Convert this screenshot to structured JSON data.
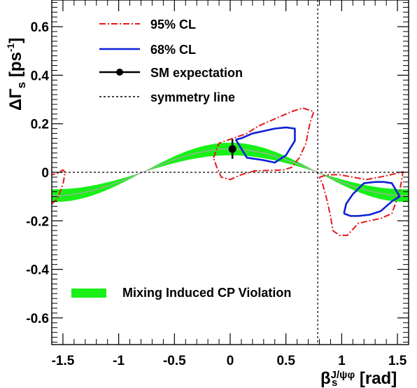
{
  "chart_data": {
    "type": "line",
    "xlim": [
      -1.6,
      1.6
    ],
    "ylim": [
      -0.71,
      0.71
    ],
    "x_ticks": [
      -1.5,
      -1,
      -0.5,
      0,
      0.5,
      1,
      1.5
    ],
    "x_tick_labels": [
      "-1.5",
      "-1",
      "-0.5",
      "0",
      "0.5",
      "1",
      "1.5"
    ],
    "y_ticks": [
      -0.6,
      -0.4,
      -0.2,
      0,
      0.2,
      0.4,
      0.6
    ],
    "y_tick_labels": [
      "-0.6",
      "-0.4",
      "-0.2",
      "0",
      "0.2",
      "0.4",
      "0.6"
    ],
    "xlabel": {
      "main": "β",
      "sub": "s",
      "sup": "J/ψφ",
      "unit": "[rad]"
    },
    "ylabel": {
      "main": "ΔΓ",
      "sub": "s",
      "unit_pre": "[ps",
      "unit_sup": "-1",
      "unit_post": "]"
    },
    "grid": false,
    "legend_placement": "top-left",
    "colors": {
      "cl95": "#e41a1c",
      "cl68": "#0c1fd6",
      "sm": "#000000",
      "band": "#18f018",
      "band_center": "#a9a9a9"
    },
    "band": {
      "name": "Mixing Induced CP Violation",
      "x_range": [
        -1.6,
        1.6
      ],
      "amplitude_center": 0.096,
      "amplitude_half_width": 0.026
    },
    "sm_point": {
      "name": "SM expectation",
      "x": 0.02,
      "y": 0.096
    },
    "symmetry_lines": {
      "name": "symmetry line",
      "x": 0.785,
      "y": 0
    },
    "series": [
      {
        "name": "95% CL",
        "style": "dashdot",
        "contours": [
          {
            "x": [
              -0.15,
              -0.1,
              0.15,
              0.25,
              0.35,
              0.45,
              0.55,
              0.65,
              0.75,
              0.72,
              0.7,
              0.68,
              0.62,
              0.55,
              0.48,
              0.38,
              0.22,
              0.1,
              0.0,
              -0.08,
              -0.12,
              -0.15
            ],
            "y": [
              0.06,
              0.12,
              0.16,
              0.19,
              0.21,
              0.23,
              0.25,
              0.265,
              0.25,
              0.21,
              0.17,
              0.12,
              0.06,
              0.02,
              0.01,
              0.008,
              0.006,
              -0.01,
              -0.03,
              -0.02,
              0.02,
              0.06
            ]
          },
          {
            "x": [
              0.8,
              0.88,
              0.98,
              1.1,
              1.22,
              1.34,
              1.46,
              1.55,
              1.52,
              1.45,
              1.35,
              1.25,
              1.15,
              1.05,
              0.98,
              0.92,
              0.9,
              0.86,
              0.83,
              0.8
            ],
            "y": [
              -0.02,
              -0.01,
              -0.01,
              -0.02,
              -0.03,
              -0.02,
              -0.008,
              0.002,
              -0.08,
              -0.17,
              -0.19,
              -0.2,
              -0.21,
              -0.26,
              -0.26,
              -0.24,
              -0.18,
              -0.1,
              -0.05,
              -0.02
            ]
          },
          {
            "x": [
              -1.6,
              -1.55,
              -1.5,
              -1.48,
              -1.5,
              -1.55,
              -1.6
            ],
            "y": [
              -0.13,
              -0.11,
              -0.05,
              0.0,
              0.01,
              -0.005,
              -0.01
            ]
          }
        ]
      },
      {
        "name": "68% CL",
        "style": "solid",
        "contours": [
          {
            "x": [
              0.05,
              0.1,
              0.2,
              0.3,
              0.4,
              0.5,
              0.58,
              0.58,
              0.5,
              0.4,
              0.3,
              0.15,
              0.05
            ],
            "y": [
              0.135,
              0.14,
              0.16,
              0.17,
              0.18,
              0.185,
              0.18,
              0.13,
              0.07,
              0.04,
              0.05,
              0.06,
              0.135
            ]
          },
          {
            "x": [
              1.02,
              1.08,
              1.15,
              1.25,
              1.35,
              1.45,
              1.52,
              1.45,
              1.38,
              1.3,
              1.2,
              1.1,
              1.04,
              1.02
            ],
            "y": [
              -0.17,
              -0.18,
              -0.18,
              -0.175,
              -0.16,
              -0.12,
              -0.1,
              -0.045,
              -0.04,
              -0.04,
              -0.045,
              -0.09,
              -0.13,
              -0.17
            ]
          }
        ]
      }
    ]
  }
}
